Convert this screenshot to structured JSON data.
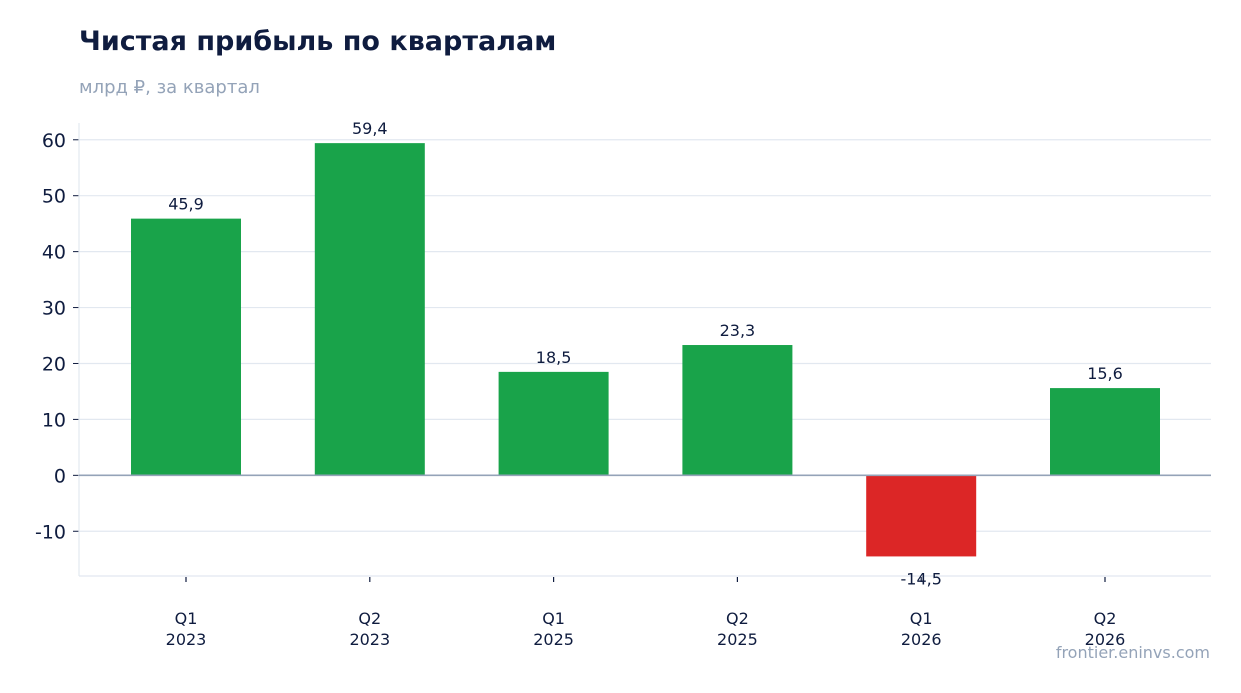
{
  "header": {
    "title": "Чистая прибыль по кварталам",
    "subtitle": "млрд ₽, за квартал"
  },
  "watermark": "frontier.eninvs.com",
  "colors": {
    "positive": "#19a34a",
    "negative": "#dc2626",
    "grid": "#e2e8f0",
    "zero_line": "#94a3b8",
    "text": "#0f1c3f"
  },
  "chart_data": {
    "type": "bar",
    "categories": [
      [
        "Q1",
        "2023"
      ],
      [
        "Q2",
        "2023"
      ],
      [
        "Q1",
        "2025"
      ],
      [
        "Q2",
        "2025"
      ],
      [
        "Q1",
        "2026"
      ],
      [
        "Q2",
        "2026"
      ]
    ],
    "values": [
      45.9,
      59.4,
      18.5,
      23.3,
      -14.5,
      15.6
    ],
    "data_labels": [
      "45,9",
      "59,4",
      "18,5",
      "23,3",
      "-14,5",
      "15,6"
    ],
    "yticks": [
      -10,
      0,
      10,
      20,
      30,
      40,
      50,
      60
    ],
    "ylim": [
      -18,
      63
    ],
    "grid": true,
    "legend": "none"
  }
}
